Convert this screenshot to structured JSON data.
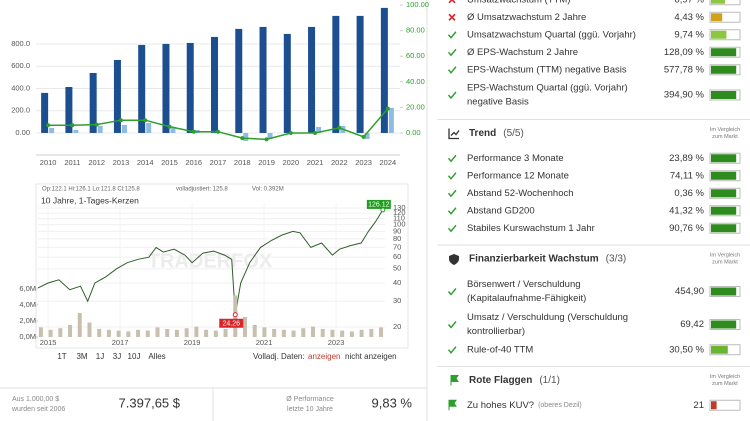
{
  "chart_data": [
    {
      "type": "bar",
      "categories": [
        "2010",
        "2011",
        "2012",
        "2013",
        "2014",
        "2015",
        "2016",
        "2017",
        "2018",
        "2019",
        "2020",
        "2021",
        "2022",
        "2023",
        "2024"
      ],
      "series": [
        {
          "color": "#1b4f8f",
          "values": [
            360,
            413,
            539,
            656,
            791,
            800,
            809,
            863,
            935,
            953,
            890,
            953,
            1052,
            1052,
            1124
          ]
        },
        {
          "color": "#8fbbe3",
          "values": [
            45,
            27,
            63,
            72,
            90,
            45,
            27,
            0,
            -72,
            -54,
            0,
            54,
            63,
            -54,
            225
          ]
        },
        {
          "type": "line",
          "axis": "y2",
          "color": "#2ca02c",
          "values": [
            6,
            6,
            6.5,
            10,
            10,
            5,
            1,
            1,
            -4,
            -5,
            0,
            0,
            4,
            -3,
            19
          ]
        }
      ],
      "ylim": [
        -198,
        1150
      ],
      "yticks": [
        {
          "value": 0,
          "label": "0.00"
        },
        {
          "value": 200,
          "label": "200.0"
        },
        {
          "value": 400,
          "label": "400.0"
        },
        {
          "value": 600,
          "label": "600.0"
        },
        {
          "value": 800,
          "label": "800.0"
        }
      ],
      "y2lim": [
        -17.2,
        100
      ],
      "y2ticks": [
        {
          "value": 0,
          "label": "0.00"
        },
        {
          "value": 20,
          "label": "20.00"
        },
        {
          "value": 40,
          "label": "40.00"
        },
        {
          "value": 60,
          "label": "60.00"
        },
        {
          "value": 80,
          "label": "80.00"
        },
        {
          "value": 100,
          "label": "100.00"
        }
      ],
      "y2color": "#2ca02c",
      "grid": true
    },
    {
      "type": "line",
      "title": "10 Jahre, 1-Tages-Kerzen",
      "ohlc": "Op:122.1  Hi:126.1  Lo:121.8  Cl:125.8",
      "adjusted": "volladjustiert: 125.8",
      "volume_info": "Vol: 0.392M",
      "watermark": "TRADERFOX",
      "yscale": "log",
      "series": [
        {
          "color": "#2f5e2a",
          "x": [
            2014.72,
            2015.0,
            2015.3,
            2015.6,
            2015.9,
            2016.1,
            2016.3,
            2016.6,
            2016.9,
            2017.2,
            2017.5,
            2017.8,
            2018.0,
            2018.2,
            2018.5,
            2018.8,
            2019.0,
            2019.3,
            2019.6,
            2019.9,
            2020.1,
            2020.2,
            2020.35,
            2020.6,
            2020.9,
            2021.2,
            2021.5,
            2021.8,
            2022.0,
            2022.3,
            2022.6,
            2022.9,
            2023.1,
            2023.4,
            2023.7,
            2023.9,
            2024.1,
            2024.3
          ],
          "values": [
            37,
            40,
            42,
            36,
            38,
            30,
            40,
            44,
            50,
            55,
            58,
            60,
            70,
            65,
            68,
            62,
            55,
            64,
            66,
            62,
            58,
            24.26,
            40,
            55,
            70,
            78,
            85,
            90,
            88,
            70,
            75,
            62,
            68,
            72,
            75,
            90,
            105,
            126.12
          ]
        },
        {
          "axis": "y2",
          "color": "#c8bfae",
          "x": [
            2014.8,
            2015.07,
            2015.34,
            2015.61,
            2015.88,
            2016.15,
            2016.42,
            2016.69,
            2016.96,
            2017.23,
            2017.5,
            2017.77,
            2018.04,
            2018.31,
            2018.58,
            2018.85,
            2019.12,
            2019.39,
            2019.66,
            2019.93,
            2020.2,
            2020.47,
            2020.74,
            2021.01,
            2021.28,
            2021.55,
            2021.82,
            2022.09,
            2022.36,
            2022.63,
            2022.9,
            2023.17,
            2023.44,
            2023.71,
            2023.98,
            2024.25
          ],
          "values": [
            1200000,
            900000,
            1100000,
            1500000,
            3000000,
            1800000,
            1000000,
            900000,
            800000,
            700000,
            900000,
            800000,
            1200000,
            1000000,
            900000,
            1100000,
            1300000,
            900000,
            800000,
            1000000,
            5200000,
            2500000,
            1500000,
            1200000,
            1000000,
            900000,
            800000,
            1100000,
            1300000,
            1000000,
            900000,
            800000,
            700000,
            900000,
            1000000,
            1200000
          ]
        }
      ],
      "xlim": [
        2014.72,
        2024.36
      ],
      "xticks": [
        2015,
        2017,
        2019,
        2021,
        2023
      ],
      "ylim": [
        17.1,
        140.6
      ],
      "yticks": [
        20,
        30,
        40,
        50,
        60,
        70,
        80,
        90,
        100,
        110,
        120,
        130
      ],
      "y2lim": [
        0,
        16750000
      ],
      "y2ticks": [
        {
          "value": 0,
          "label": "0,0M"
        },
        {
          "value": 2000000,
          "label": "2,0M"
        },
        {
          "value": 4000000,
          "label": "4,0M"
        },
        {
          "value": 6000000,
          "label": "6,0M"
        }
      ],
      "annotations": [
        {
          "x": 2024.3,
          "y": 126.12,
          "color": "#1f9e1f"
        },
        {
          "x": 2020.2,
          "y": 24.26,
          "color": "#d9262b"
        }
      ],
      "grid": true
    }
  ],
  "controls": {
    "ranges": [
      "1T",
      "3M",
      "1J",
      "3J",
      "10J",
      "Alles"
    ],
    "adjusted_label": "Volladj. Daten:",
    "adjusted_options": [
      "anzeigen",
      "nicht anzeigen"
    ]
  },
  "summary": {
    "invest_label": [
      "Aus 1.000,00 $",
      "wurden seit 2006"
    ],
    "invest_value": "7.397,65 $",
    "performance_label": [
      "Ø Performance",
      "letzte 10 Jahre"
    ],
    "performance_value": "9,83 %"
  },
  "scorecard": [
    {
      "items": [
        {
          "status": "fail",
          "label": [
            "Umsatzwachstum (TTM)"
          ],
          "value": "6,97 %",
          "bar": 0.5,
          "bar_color": "#8dc63f"
        },
        {
          "status": "fail",
          "label": [
            "Ø Umsatzwachstum 2 Jahre"
          ],
          "value": "4,43 %",
          "bar": 0.4,
          "bar_color": "#d4a017"
        },
        {
          "status": "pass",
          "label": [
            "Umsatzwachstum Quartal (ggü. Vorjahr)"
          ],
          "value": "9,74 %",
          "bar": 0.55,
          "bar_color": "#8dc63f"
        },
        {
          "status": "pass",
          "label": [
            "Ø EPS-Wachstum 2 Jahre"
          ],
          "value": "128,09 %",
          "bar": 0.9,
          "bar_color": "#2e8b1e"
        },
        {
          "status": "pass",
          "label": [
            "EPS-Wachstum (TTM) negative Basis"
          ],
          "value": "577,78 %",
          "bar": 0.9,
          "bar_color": "#2e8b1e"
        },
        {
          "status": "pass",
          "label": [
            "EPS-Wachstum Quartal (ggü. Vorjahr)",
            "negative Basis"
          ],
          "value": "394,90 %",
          "bar": 0.9,
          "bar_color": "#2e8b1e"
        }
      ]
    },
    {
      "title": "Trend",
      "count": "(5/5)",
      "icon": "trend",
      "note": [
        "Im Vergleich",
        "zum Markt"
      ],
      "items": [
        {
          "status": "pass",
          "label": [
            "Performance 3 Monate"
          ],
          "value": "23,89 %",
          "bar": 0.9,
          "bar_color": "#2e8b1e"
        },
        {
          "status": "pass",
          "label": [
            "Performance 12 Monate"
          ],
          "value": "74,11 %",
          "bar": 0.9,
          "bar_color": "#2e8b1e"
        },
        {
          "status": "pass",
          "label": [
            "Abstand 52-Wochenhoch"
          ],
          "value": "0,36 %",
          "bar": 0.9,
          "bar_color": "#2e8b1e"
        },
        {
          "status": "pass",
          "label": [
            "Abstand GD200"
          ],
          "value": "41,32 %",
          "bar": 0.9,
          "bar_color": "#2e8b1e"
        },
        {
          "status": "pass",
          "label": [
            "Stabiles Kurswachstum 1 Jahr"
          ],
          "value": "90,76 %",
          "bar": 0.9,
          "bar_color": "#2e8b1e"
        }
      ]
    },
    {
      "title": "Finanzierbarkeit Wachstum",
      "count": "(3/3)",
      "icon": "shield",
      "note": [
        "Im Vergleich",
        "zum Markt"
      ],
      "items": [
        {
          "status": "pass",
          "label": [
            "Börsenwert / Verschuldung",
            "(Kapitalaufnahme-Fähigkeit)"
          ],
          "value": "454,90",
          "bar": 0.9,
          "bar_color": "#2e8b1e"
        },
        {
          "status": "pass",
          "label": [
            "Umsatz / Verschuldung (Verschuldung",
            "kontrollierbar)"
          ],
          "value": "69,42",
          "bar": 0.9,
          "bar_color": "#2e8b1e"
        },
        {
          "status": "pass",
          "label": [
            "Rule-of-40 TTM"
          ],
          "value": "30,50 %",
          "bar": 0.6,
          "bar_color": "#6bb52f"
        }
      ]
    },
    {
      "title": "Rote Flaggen",
      "count": "(1/1)",
      "icon": "flag",
      "note": [
        "Im Vergleich",
        "zum Markt"
      ],
      "items": [
        {
          "status": "flag",
          "label": [
            "Zu hohes KUV?"
          ],
          "sublabel": "(oberes Dezil)",
          "value": "21",
          "bar": 0.2,
          "bar_color": "#c0392b"
        }
      ]
    }
  ]
}
